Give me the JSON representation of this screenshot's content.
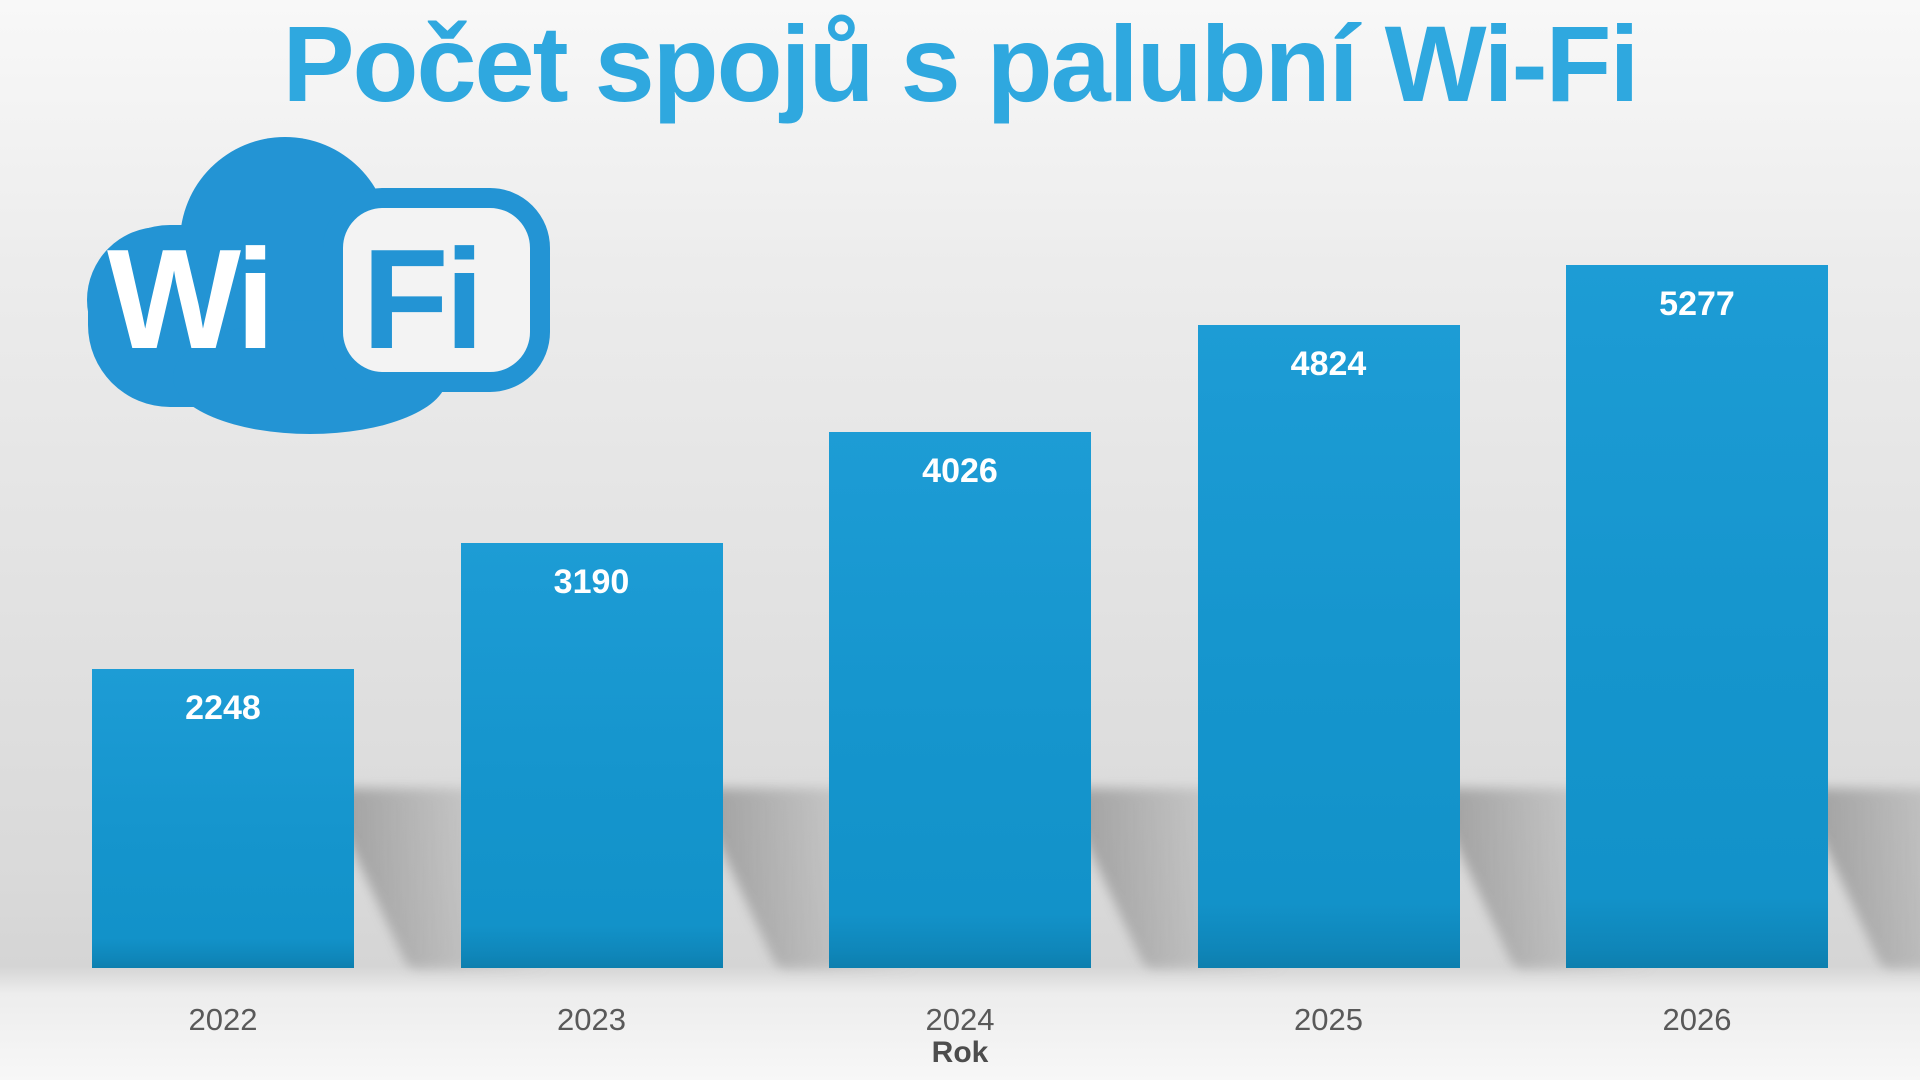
{
  "chart_data": {
    "type": "bar",
    "title": "Počet spojů s palubní Wi-Fi",
    "categories": [
      "2022",
      "2023",
      "2024",
      "2025",
      "2026"
    ],
    "values": [
      2248,
      3190,
      4026,
      4824,
      5277
    ],
    "xlabel": "Rok",
    "ylabel": "",
    "ylim": [
      0,
      5500
    ],
    "grid": false,
    "legend": false,
    "value_label_position": "inside-top"
  },
  "logo": {
    "wi_label": "Wi",
    "fi_label": "Fi"
  },
  "colors": {
    "title_blue": "#2fa8df",
    "logo_blue": "#2394d4",
    "bar_top": "#1d9cd5",
    "bar_bottom": "#1292c9",
    "bar_base_edge": "#0d7fae",
    "tick_label": "#595959",
    "x_axis_label": "#4d4d4d",
    "value_label": "#ffffff"
  }
}
